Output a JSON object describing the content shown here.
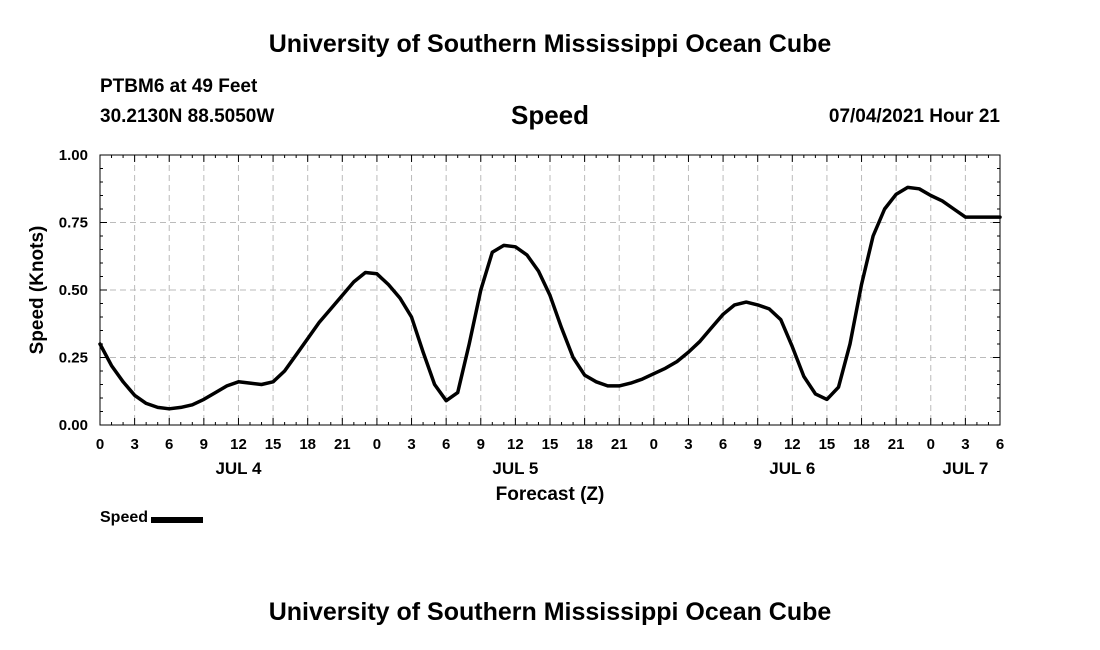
{
  "header": {
    "title": "University of Southern Mississippi Ocean Cube",
    "station": "PTBM6 at 49 Feet",
    "coords": "30.2130N  88.5050W",
    "chart_title": "Speed",
    "timestamp": "07/04/2021 Hour 21"
  },
  "footer": {
    "title": "University of Southern Mississippi Ocean Cube"
  },
  "colors": {
    "line": "#000000",
    "grid": "#bbbbbb",
    "background": "#ffffff"
  },
  "chart_data": {
    "type": "line",
    "title": "Speed",
    "xlabel": "Forecast (Z)",
    "ylabel": "Speed (Knots)",
    "grid": true,
    "xlim": [
      0,
      78
    ],
    "ylim": [
      0,
      1.0
    ],
    "yticks": [
      0.0,
      0.25,
      0.5,
      0.75,
      1.0
    ],
    "ytick_labels": [
      "0.00",
      "0.25",
      "0.50",
      "0.75",
      "1.00"
    ],
    "xticks": [
      0,
      3,
      6,
      9,
      12,
      15,
      18,
      21,
      24,
      27,
      30,
      33,
      36,
      39,
      42,
      45,
      48,
      51,
      54,
      57,
      60,
      63,
      66,
      69,
      72,
      75,
      78
    ],
    "xtick_labels": [
      "0",
      "3",
      "6",
      "9",
      "12",
      "15",
      "18",
      "21",
      "0",
      "3",
      "6",
      "9",
      "12",
      "15",
      "18",
      "21",
      "0",
      "3",
      "6",
      "9",
      "12",
      "15",
      "18",
      "21",
      "0",
      "3",
      "6"
    ],
    "date_labels": [
      {
        "label": "JUL 4",
        "at": 12
      },
      {
        "label": "JUL 5",
        "at": 36
      },
      {
        "label": "JUL 6",
        "at": 60
      },
      {
        "label": "JUL 7",
        "at": 75
      }
    ],
    "legend": {
      "label": "Speed",
      "position": "bottom-left"
    },
    "series": [
      {
        "name": "Speed",
        "x": [
          0,
          1,
          2,
          3,
          4,
          5,
          6,
          7,
          8,
          9,
          10,
          11,
          12,
          13,
          14,
          15,
          16,
          17,
          18,
          19,
          20,
          21,
          22,
          23,
          24,
          25,
          26,
          27,
          28,
          29,
          30,
          31,
          32,
          33,
          34,
          35,
          36,
          37,
          38,
          39,
          40,
          41,
          42,
          43,
          44,
          45,
          46,
          47,
          48,
          49,
          50,
          51,
          52,
          53,
          54,
          55,
          56,
          57,
          58,
          59,
          60,
          61,
          62,
          63,
          64,
          65,
          66,
          67,
          68,
          69,
          70,
          71,
          72,
          73,
          74,
          75,
          76,
          77,
          78
        ],
        "values": [
          0.3,
          0.22,
          0.16,
          0.11,
          0.08,
          0.065,
          0.06,
          0.065,
          0.075,
          0.095,
          0.12,
          0.145,
          0.16,
          0.155,
          0.15,
          0.16,
          0.2,
          0.26,
          0.32,
          0.38,
          0.43,
          0.48,
          0.53,
          0.565,
          0.56,
          0.52,
          0.47,
          0.4,
          0.27,
          0.15,
          0.09,
          0.12,
          0.3,
          0.5,
          0.64,
          0.665,
          0.66,
          0.63,
          0.57,
          0.48,
          0.36,
          0.25,
          0.185,
          0.16,
          0.145,
          0.145,
          0.155,
          0.17,
          0.19,
          0.21,
          0.235,
          0.27,
          0.31,
          0.36,
          0.41,
          0.445,
          0.455,
          0.445,
          0.43,
          0.39,
          0.29,
          0.18,
          0.115,
          0.095,
          0.14,
          0.3,
          0.52,
          0.7,
          0.8,
          0.855,
          0.88,
          0.875,
          0.85,
          0.83,
          0.8,
          0.77,
          0.77,
          0.77,
          0.77
        ]
      }
    ]
  }
}
